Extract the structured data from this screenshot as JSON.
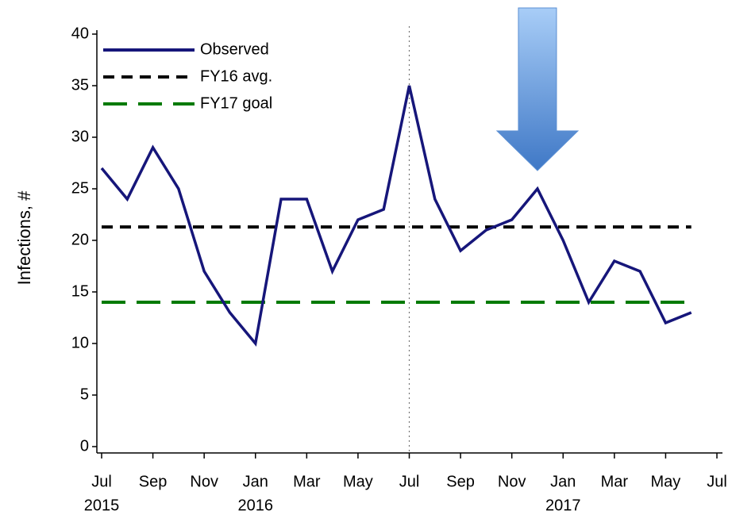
{
  "chart_data": {
    "type": "line",
    "ylabel": "Infections, #",
    "ylim": [
      0,
      40
    ],
    "yticks": [
      0,
      5,
      10,
      15,
      20,
      25,
      30,
      35,
      40
    ],
    "xlim": [
      "2015-07",
      "2017-07"
    ],
    "xticks": [
      {
        "value": "2015-07",
        "label": "Jul"
      },
      {
        "value": "2015-09",
        "label": "Sep"
      },
      {
        "value": "2015-11",
        "label": "Nov"
      },
      {
        "value": "2016-01",
        "label": "Jan"
      },
      {
        "value": "2016-03",
        "label": "Mar"
      },
      {
        "value": "2016-05",
        "label": "May"
      },
      {
        "value": "2016-07",
        "label": "Jul"
      },
      {
        "value": "2016-09",
        "label": "Sep"
      },
      {
        "value": "2016-11",
        "label": "Nov"
      },
      {
        "value": "2017-01",
        "label": "Jan"
      },
      {
        "value": "2017-03",
        "label": "Mar"
      },
      {
        "value": "2017-05",
        "label": "May"
      },
      {
        "value": "2017-07",
        "label": "Jul"
      }
    ],
    "year_labels": [
      {
        "value": "2015-07",
        "label": "2015"
      },
      {
        "value": "2016-01",
        "label": "2016"
      },
      {
        "value": "2017-01",
        "label": "2017"
      }
    ],
    "x": [
      "2015-07",
      "2015-08",
      "2015-09",
      "2015-10",
      "2015-11",
      "2015-12",
      "2016-01",
      "2016-02",
      "2016-03",
      "2016-04",
      "2016-05",
      "2016-06",
      "2016-07",
      "2016-08",
      "2016-09",
      "2016-10",
      "2016-11",
      "2016-12",
      "2017-01",
      "2017-02",
      "2017-03",
      "2017-04",
      "2017-05",
      "2017-06"
    ],
    "series": [
      {
        "name": "Observed",
        "color": "#16167a",
        "values": [
          27,
          24,
          29,
          25,
          17,
          13,
          10,
          24,
          24,
          17,
          22,
          23,
          35,
          24,
          19,
          21,
          22,
          25,
          20,
          14,
          18,
          17,
          12,
          13
        ]
      }
    ],
    "reference_lines": [
      {
        "name": "FY16 avg.",
        "value": 21.3,
        "color": "#000000",
        "dash": "14 9",
        "xrange": [
          "2015-07",
          "2017-06"
        ]
      },
      {
        "name": "FY17 goal",
        "value": 14,
        "color": "#007a00",
        "dash": "30 14",
        "xrange": [
          "2015-07",
          "2017-06"
        ]
      }
    ],
    "vline": "2016-07",
    "arrow_at": "2016-12",
    "legend": "upper left"
  }
}
